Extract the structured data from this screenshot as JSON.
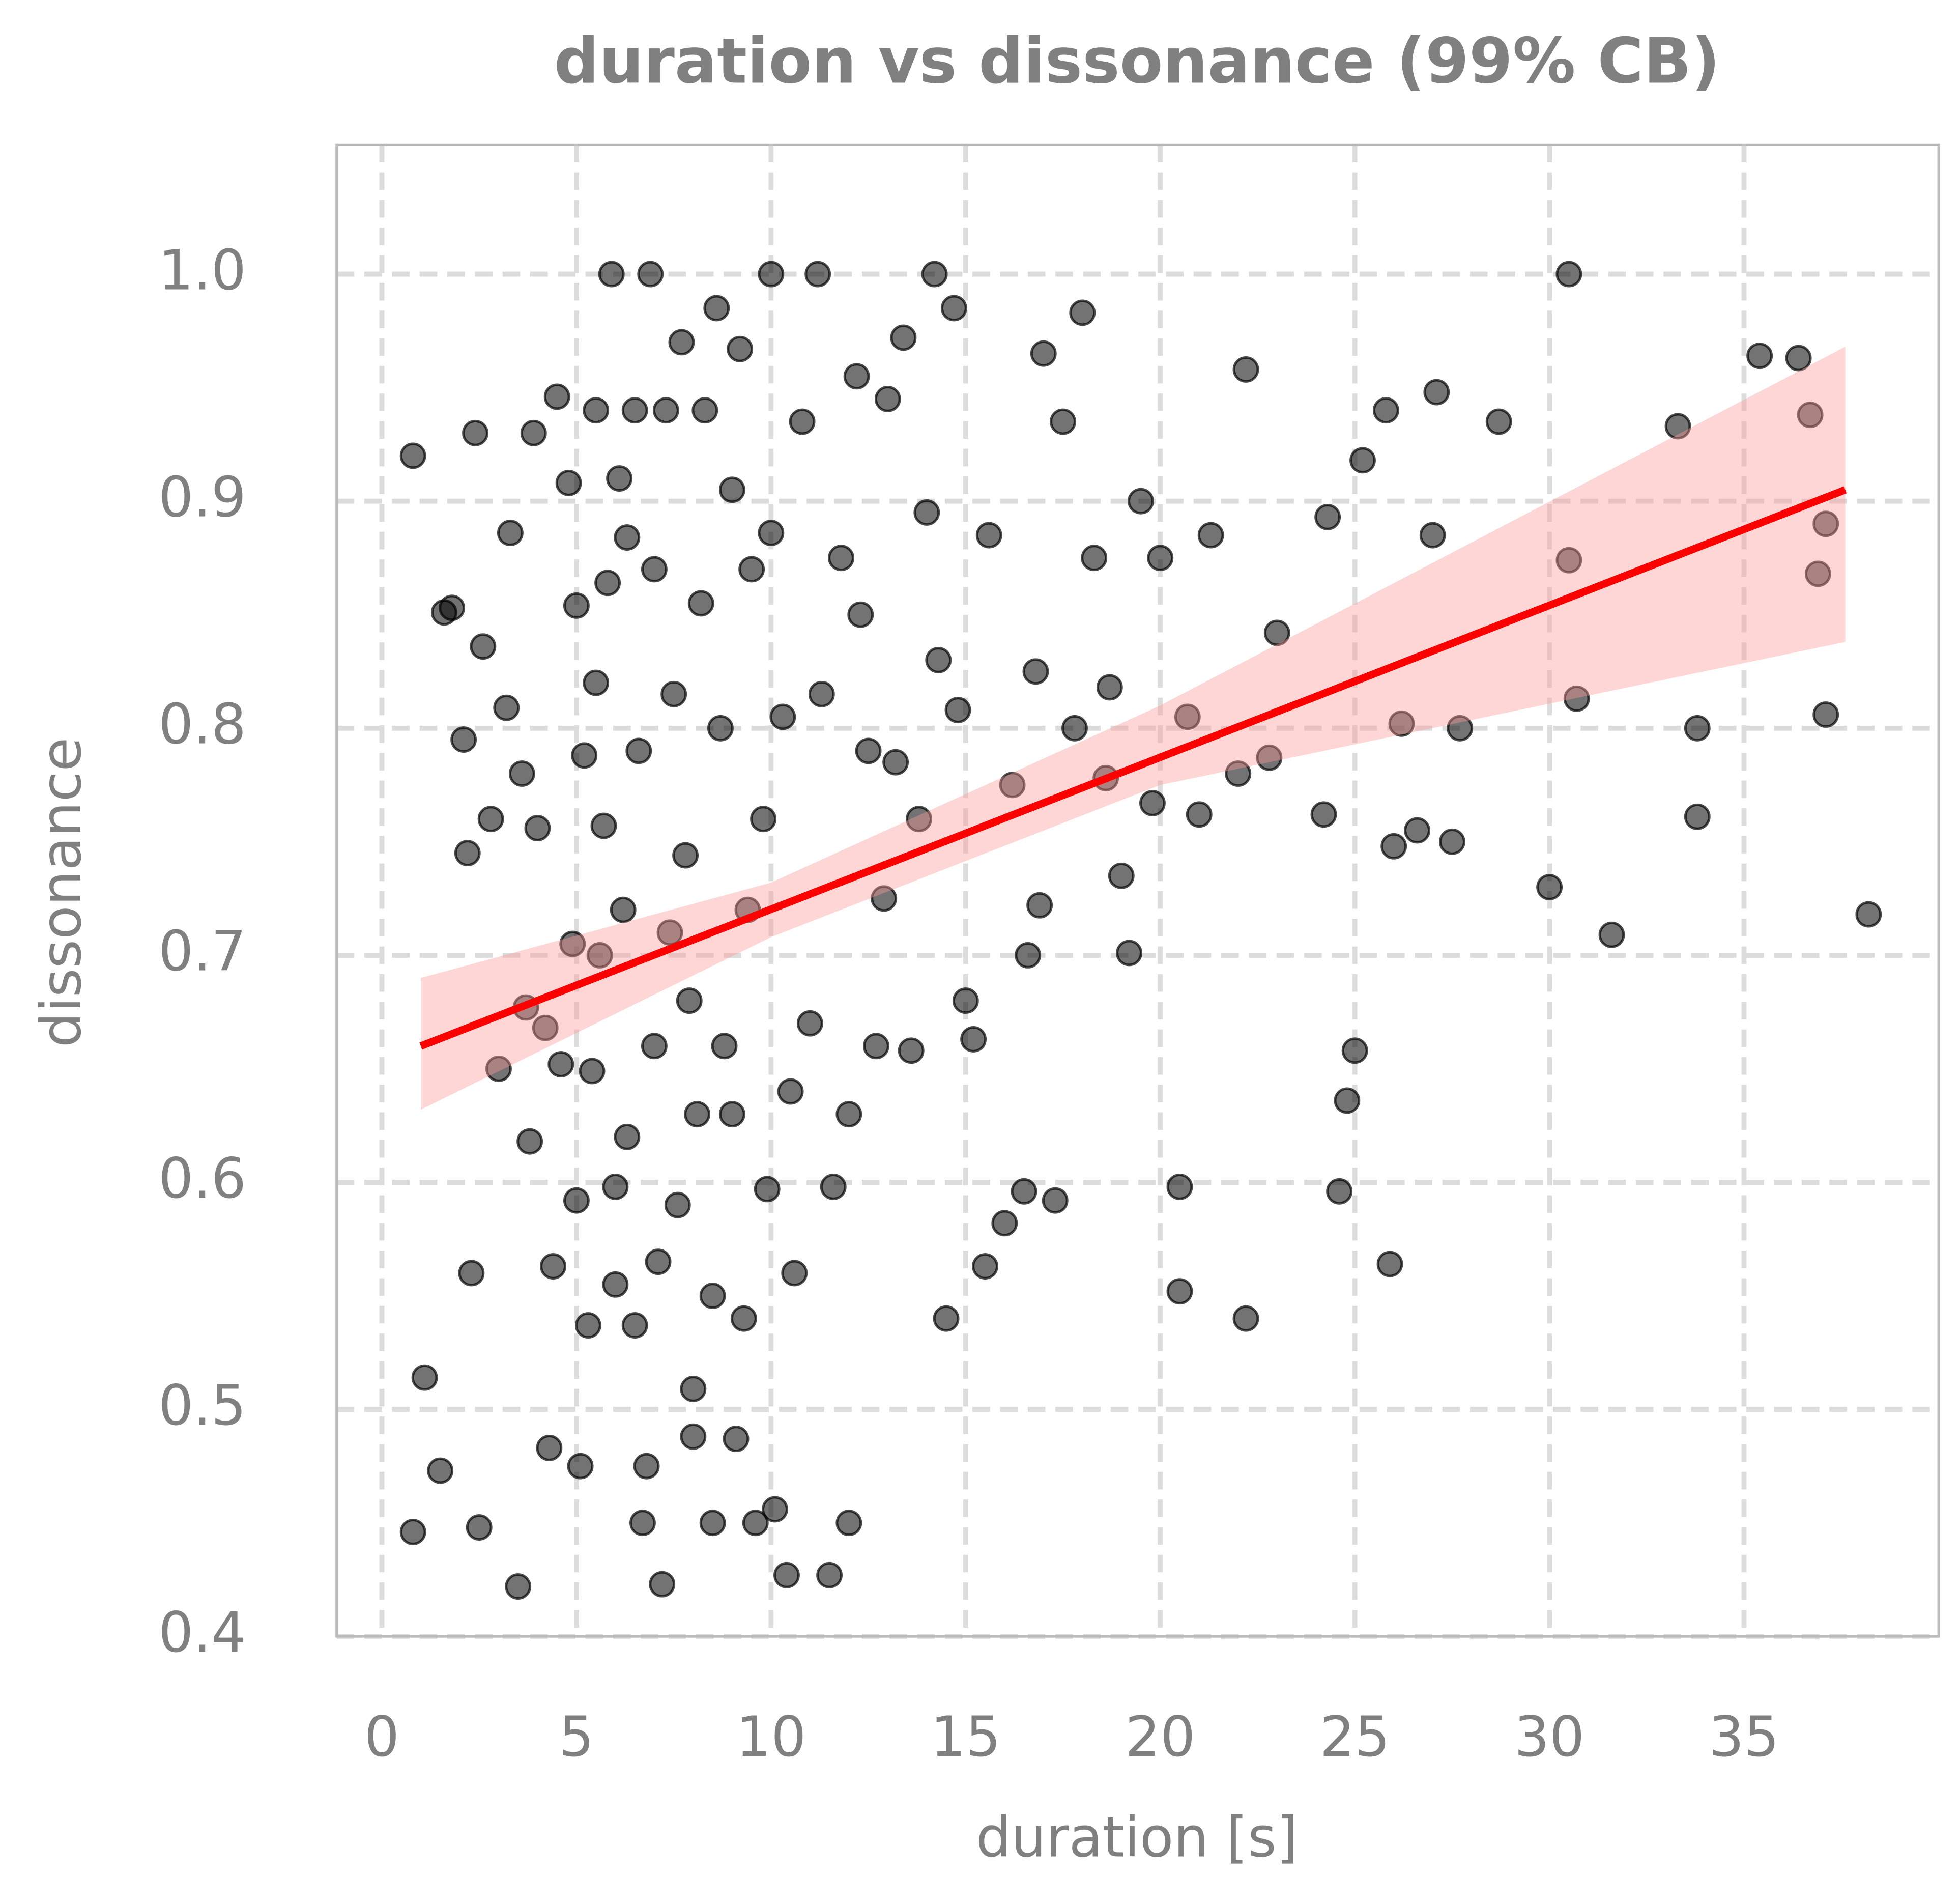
{
  "chart_data": {
    "type": "scatter",
    "title": "duration vs dissonance (99% CB)",
    "x_label": "duration [s]",
    "y_label": "dissonance",
    "xlim": [
      -1.16,
      40
    ],
    "ylim": [
      0.4,
      1.057
    ],
    "xticks": [
      0,
      5,
      10,
      15,
      20,
      25,
      30,
      35
    ],
    "yticks": [
      0.4,
      0.5,
      0.6,
      0.7,
      0.8,
      0.9,
      {
        "value": 1,
        "label": "1.0"
      }
    ],
    "grid": true,
    "color": "#000000",
    "x": [
      0.8,
      0.8,
      1.1,
      1.5,
      1.6,
      1.8,
      2.1,
      2.2,
      2.3,
      2.4,
      2.5,
      2.6,
      2.8,
      3.0,
      3.2,
      3.3,
      3.5,
      3.6,
      3.7,
      3.8,
      3.9,
      4.0,
      4.2,
      4.3,
      4.4,
      4.5,
      4.6,
      4.8,
      4.9,
      5.0,
      5.0,
      5.1,
      5.2,
      5.3,
      5.4,
      5.5,
      5.5,
      5.6,
      5.7,
      5.8,
      5.9,
      6.0,
      6.0,
      6.1,
      6.2,
      6.3,
      6.3,
      6.5,
      6.5,
      6.6,
      6.7,
      6.8,
      6.9,
      7.0,
      7.0,
      7.1,
      7.2,
      7.3,
      7.4,
      7.5,
      7.6,
      7.7,
      7.8,
      7.9,
      8.0,
      8.0,
      8.1,
      8.2,
      8.3,
      8.5,
      8.5,
      8.6,
      8.7,
      8.8,
      9.0,
      9.0,
      9.1,
      9.2,
      9.3,
      9.4,
      9.5,
      9.6,
      9.8,
      9.9,
      10.0,
      10.0,
      10.1,
      10.3,
      10.4,
      10.5,
      10.6,
      10.8,
      11.0,
      11.2,
      11.3,
      11.5,
      11.6,
      11.8,
      12.0,
      12.0,
      12.2,
      12.3,
      12.5,
      12.7,
      12.9,
      13.0,
      13.2,
      13.4,
      13.6,
      13.8,
      14.0,
      14.2,
      14.3,
      14.5,
      14.7,
      14.8,
      15.0,
      15.2,
      15.5,
      15.6,
      16.0,
      16.2,
      16.5,
      16.6,
      16.8,
      16.9,
      17.0,
      17.3,
      17.5,
      17.8,
      18.0,
      18.3,
      18.6,
      18.7,
      19.0,
      19.2,
      19.5,
      19.8,
      20.0,
      20.5,
      20.5,
      20.7,
      21.0,
      21.3,
      22.0,
      22.2,
      22.2,
      22.8,
      23.0,
      24.2,
      24.3,
      24.6,
      24.8,
      25.0,
      25.2,
      25.8,
      25.9,
      26.0,
      26.2,
      26.6,
      27.0,
      27.1,
      27.5,
      27.7,
      28.7,
      30.0,
      30.5,
      30.5,
      30.7,
      31.6,
      33.3,
      33.8,
      33.8,
      35.4,
      36.4,
      36.7,
      36.9,
      37.1,
      37.1,
      38.2
    ],
    "y": [
      0.92,
      0.446,
      0.514,
      0.473,
      0.851,
      0.853,
      0.795,
      0.745,
      0.56,
      0.93,
      0.448,
      0.836,
      0.76,
      0.65,
      0.809,
      0.886,
      0.422,
      0.78,
      0.677,
      0.618,
      0.93,
      0.756,
      0.668,
      0.483,
      0.563,
      0.946,
      0.652,
      0.908,
      0.705,
      0.854,
      0.592,
      0.475,
      0.788,
      0.537,
      0.649,
      0.94,
      0.82,
      0.7,
      0.757,
      0.864,
      1.0,
      0.598,
      0.555,
      0.91,
      0.72,
      0.62,
      0.884,
      0.537,
      0.94,
      0.79,
      0.45,
      0.475,
      1.0,
      0.66,
      0.87,
      0.565,
      0.423,
      0.94,
      0.71,
      0.815,
      0.59,
      0.97,
      0.744,
      0.68,
      0.509,
      0.488,
      0.63,
      0.855,
      0.94,
      0.55,
      0.45,
      0.985,
      0.8,
      0.66,
      0.905,
      0.63,
      0.487,
      0.967,
      0.54,
      0.72,
      0.87,
      0.45,
      0.76,
      0.597,
      1.0,
      0.886,
      0.456,
      0.805,
      0.427,
      0.64,
      0.56,
      0.935,
      0.67,
      1.0,
      0.815,
      0.427,
      0.598,
      0.875,
      0.63,
      0.45,
      0.955,
      0.85,
      0.79,
      0.66,
      0.725,
      0.945,
      0.785,
      0.972,
      0.658,
      0.76,
      0.895,
      1.0,
      0.83,
      0.54,
      0.985,
      0.808,
      0.68,
      0.663,
      0.563,
      0.885,
      0.582,
      0.775,
      0.596,
      0.7,
      0.825,
      0.722,
      0.965,
      0.592,
      0.935,
      0.8,
      0.983,
      0.875,
      0.778,
      0.818,
      0.735,
      0.701,
      0.9,
      0.767,
      0.875,
      0.598,
      0.552,
      0.805,
      0.762,
      0.885,
      0.78,
      0.958,
      0.54,
      0.787,
      0.842,
      0.762,
      0.893,
      0.596,
      0.636,
      0.658,
      0.918,
      0.94,
      0.564,
      0.748,
      0.802,
      0.755,
      0.885,
      0.948,
      0.75,
      0.8,
      0.935,
      0.73,
      1.0,
      0.874,
      0.813,
      0.709,
      0.933,
      0.8,
      0.761,
      0.964,
      0.963,
      0.938,
      0.868,
      0.89,
      0.806,
      0.718
    ],
    "fit": {
      "color": "#ff0000",
      "x": [
        1,
        37.6
      ],
      "y": [
        0.66,
        0.905
      ]
    },
    "band": {
      "color": "#ff9999",
      "x": [
        1,
        10,
        20,
        37.6
      ],
      "lower": [
        0.632,
        0.708,
        0.775,
        0.838
      ],
      "upper": [
        0.69,
        0.732,
        0.81,
        0.968
      ]
    }
  }
}
